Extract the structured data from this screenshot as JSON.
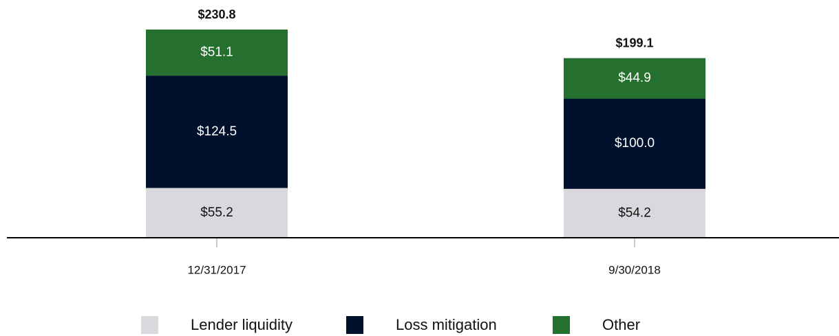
{
  "chart_data": {
    "type": "stacked_bar",
    "categories": [
      "12/31/2017",
      "9/30/2018"
    ],
    "series": [
      {
        "name": "Lender liquidity",
        "color": "#d9d8dd",
        "values": [
          55.2,
          54.2
        ],
        "value_labels": [
          "$55.2",
          "$54.2"
        ]
      },
      {
        "name": "Loss mitigation",
        "color": "#00112e",
        "values": [
          124.5,
          100.0
        ],
        "value_labels": [
          "$124.5",
          "$100.0"
        ]
      },
      {
        "name": "Other",
        "color": "#25702f",
        "values": [
          51.1,
          44.9
        ],
        "value_labels": [
          "$51.1",
          "$44.9"
        ]
      }
    ],
    "totals": [
      230.8,
      199.1
    ],
    "total_labels": [
      "$230.8",
      "$199.1"
    ]
  }
}
